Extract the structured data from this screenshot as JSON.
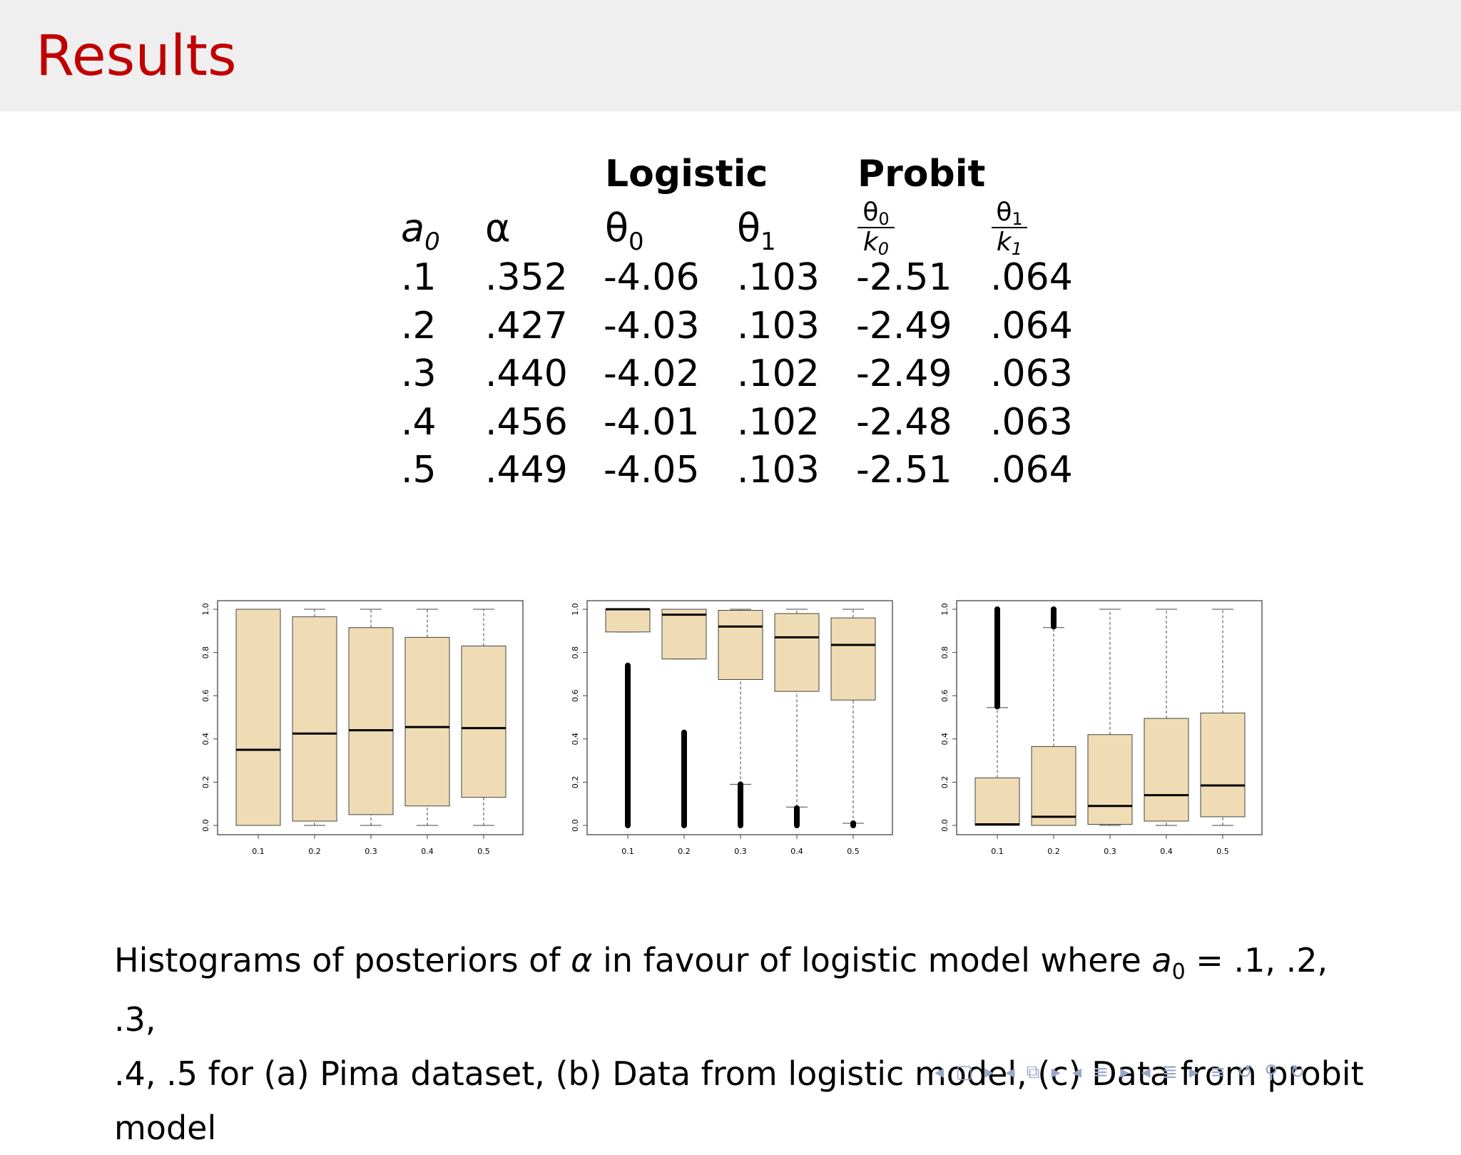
{
  "slide": {
    "title": "Results"
  },
  "table": {
    "group_headers": {
      "logistic": "Logistic",
      "probit": "Probit"
    },
    "column_symbols": {
      "a0": {
        "base": "a",
        "sub": "0"
      },
      "alpha": "α",
      "theta0": {
        "base": "θ",
        "sub": "0"
      },
      "theta1": {
        "base": "θ",
        "sub": "1"
      },
      "probit0": {
        "num": "θ",
        "num_sub": "0",
        "den": "k",
        "den_sub": "0"
      },
      "probit1": {
        "num": "θ",
        "num_sub": "1",
        "den": "k",
        "den_sub": "1"
      }
    },
    "rows": [
      [
        ".1",
        ".352",
        "-4.06",
        ".103",
        "-2.51",
        ".064"
      ],
      [
        ".2",
        ".427",
        "-4.03",
        ".103",
        "-2.49",
        ".064"
      ],
      [
        ".3",
        ".440",
        "-4.02",
        ".102",
        "-2.49",
        ".063"
      ],
      [
        ".4",
        ".456",
        "-4.01",
        ".102",
        "-2.48",
        ".063"
      ],
      [
        ".5",
        ".449",
        "-4.05",
        ".103",
        "-2.51",
        ".064"
      ]
    ]
  },
  "chart_data": [
    {
      "type": "box",
      "categories": [
        "0.1",
        "0.2",
        "0.3",
        "0.4",
        "0.5"
      ],
      "y_ticks": [
        "0.0",
        "0.2",
        "0.4",
        "0.6",
        "0.8",
        "1.0"
      ],
      "ylim": [
        0,
        1
      ],
      "boxes": [
        {
          "whisker_low": 0.0,
          "q1": 0.0,
          "median": 0.35,
          "q3": 1.0,
          "whisker_high": 1.0
        },
        {
          "whisker_low": 0.0,
          "q1": 0.02,
          "median": 0.425,
          "q3": 0.965,
          "whisker_high": 1.0
        },
        {
          "whisker_low": 0.0,
          "q1": 0.05,
          "median": 0.44,
          "q3": 0.915,
          "whisker_high": 1.0
        },
        {
          "whisker_low": 0.0,
          "q1": 0.09,
          "median": 0.455,
          "q3": 0.87,
          "whisker_high": 1.0
        },
        {
          "whisker_low": 0.0,
          "q1": 0.13,
          "median": 0.45,
          "q3": 0.83,
          "whisker_high": 1.0
        }
      ],
      "outliers": []
    },
    {
      "type": "box",
      "categories": [
        "0.1",
        "0.2",
        "0.3",
        "0.4",
        "0.5"
      ],
      "y_ticks": [
        "0.0",
        "0.2",
        "0.4",
        "0.6",
        "0.8",
        "1.0"
      ],
      "ylim": [
        0,
        1
      ],
      "boxes": [
        {
          "whisker_low": 0.895,
          "q1": 0.895,
          "median": 1.0,
          "q3": 1.0,
          "whisker_high": 1.0
        },
        {
          "whisker_low": 0.77,
          "q1": 0.77,
          "median": 0.975,
          "q3": 1.0,
          "whisker_high": 1.0
        },
        {
          "whisker_low": 0.19,
          "q1": 0.675,
          "median": 0.92,
          "q3": 0.995,
          "whisker_high": 1.0
        },
        {
          "whisker_low": 0.085,
          "q1": 0.62,
          "median": 0.87,
          "q3": 0.98,
          "whisker_high": 1.0
        },
        {
          "whisker_low": 0.01,
          "q1": 0.58,
          "median": 0.835,
          "q3": 0.96,
          "whisker_high": 1.0
        }
      ],
      "outliers": [
        {
          "category": "0.1",
          "from": 0.0,
          "to": 0.74
        },
        {
          "category": "0.2",
          "from": 0.0,
          "to": 0.43
        },
        {
          "category": "0.3",
          "from": 0.0,
          "to": 0.19
        },
        {
          "category": "0.4",
          "from": 0.0,
          "to": 0.08
        },
        {
          "category": "0.5",
          "from": 0.0,
          "to": 0.01
        }
      ]
    },
    {
      "type": "box",
      "categories": [
        "0.1",
        "0.2",
        "0.3",
        "0.4",
        "0.5"
      ],
      "y_ticks": [
        "0.0",
        "0.2",
        "0.4",
        "0.6",
        "0.8",
        "1.0"
      ],
      "ylim": [
        0,
        1
      ],
      "boxes": [
        {
          "whisker_low": 0.0,
          "q1": 0.0,
          "median": 0.005,
          "q3": 0.22,
          "whisker_high": 0.545
        },
        {
          "whisker_low": 0.0,
          "q1": 0.0,
          "median": 0.04,
          "q3": 0.365,
          "whisker_high": 0.915
        },
        {
          "whisker_low": 0.0,
          "q1": 0.005,
          "median": 0.09,
          "q3": 0.42,
          "whisker_high": 1.0
        },
        {
          "whisker_low": 0.0,
          "q1": 0.02,
          "median": 0.14,
          "q3": 0.495,
          "whisker_high": 1.0
        },
        {
          "whisker_low": 0.0,
          "q1": 0.04,
          "median": 0.185,
          "q3": 0.52,
          "whisker_high": 1.0
        }
      ],
      "outliers": [
        {
          "category": "0.1",
          "from": 0.55,
          "to": 1.0
        },
        {
          "category": "0.2",
          "from": 0.92,
          "to": 1.0
        }
      ]
    }
  ],
  "caption": {
    "line1_pre": "Histograms of posteriors of ",
    "alpha": "α",
    "line1_mid": " in favour of logistic model where ",
    "a0": "a",
    "a0_sub": "0",
    "line1_post": " = .1, .2, .3,",
    "line2": ".4, .5 for (a) Pima dataset, (b) Data from logistic model, (c) Data from probit",
    "line3": "model"
  },
  "colors": {
    "title": "#c00000",
    "box_fill": "#f0dcb4",
    "nav": "#9aa6c8"
  },
  "navigation": {
    "icons": [
      "nav-frame-icon",
      "nav-subsection-icon",
      "nav-section-icon",
      "nav-doc-icon",
      "nav-align-icon",
      "nav-search-icon",
      "nav-back-icon"
    ]
  }
}
